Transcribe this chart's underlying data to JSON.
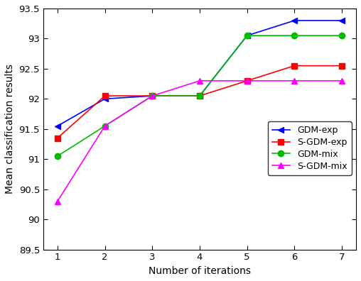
{
  "x": [
    1,
    2,
    3,
    4,
    5,
    6,
    7
  ],
  "gdm_exp": [
    91.55,
    92.0,
    92.05,
    92.05,
    93.05,
    93.3,
    93.3
  ],
  "sgdm_exp": [
    91.35,
    92.05,
    92.05,
    92.05,
    92.3,
    92.55,
    92.55
  ],
  "gdm_mix": [
    91.05,
    91.55,
    92.05,
    92.05,
    93.05,
    93.05,
    93.05
  ],
  "sgdm_mix": [
    90.3,
    91.55,
    92.05,
    92.3,
    92.3,
    92.3,
    92.3
  ],
  "colors": {
    "gdm_exp": "#0000ff",
    "sgdm_exp": "#ff0000",
    "gdm_mix": "#00bb00",
    "sgdm_mix": "#ff00ff"
  },
  "markers": {
    "gdm_exp": "<",
    "sgdm_exp": "s",
    "gdm_mix": "o",
    "sgdm_mix": "^"
  },
  "labels": {
    "gdm_exp": "GDM-exp",
    "sgdm_exp": "S-GDM-exp",
    "gdm_mix": "GDM-mix",
    "sgdm_mix": "S-GDM-mix"
  },
  "xlabel": "Number of iterations",
  "ylabel": "Mean classification results",
  "xlim": [
    0.7,
    7.3
  ],
  "ylim": [
    89.5,
    93.5
  ],
  "yticks": [
    89.5,
    90.0,
    90.5,
    91.0,
    91.5,
    92.0,
    92.5,
    93.0,
    93.5
  ],
  "xticks": [
    1,
    2,
    3,
    4,
    5,
    6,
    7
  ],
  "markersize": 6,
  "linewidth": 1.2
}
